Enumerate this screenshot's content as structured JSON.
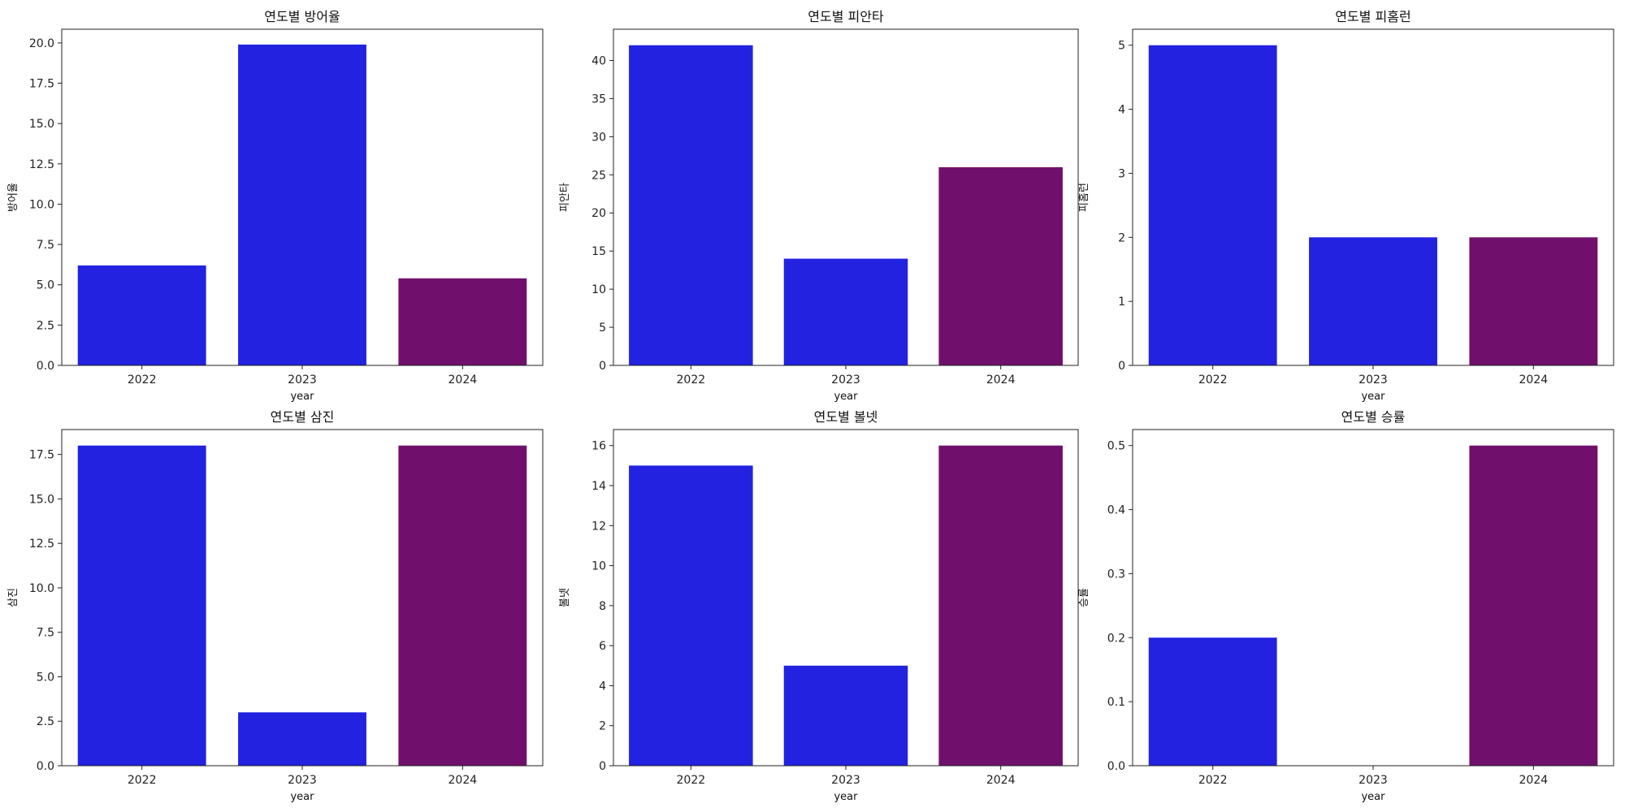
{
  "colors": {
    "blue": "#2222e0",
    "purple": "#70106c"
  },
  "chart_data": [
    {
      "type": "bar",
      "title": "연도별 방어율",
      "xlabel": "year",
      "ylabel": "방어율",
      "categories": [
        "2022",
        "2023",
        "2024"
      ],
      "values": [
        6.2,
        19.9,
        5.4
      ],
      "bar_colors": [
        "#2222e0",
        "#2222e0",
        "#70106c"
      ],
      "ylim": [
        0,
        20.85
      ],
      "yticks": [
        0.0,
        2.5,
        5.0,
        7.5,
        10.0,
        12.5,
        15.0,
        17.5,
        20.0
      ],
      "ytick_labels": [
        "0.0",
        "2.5",
        "5.0",
        "7.5",
        "10.0",
        "12.5",
        "15.0",
        "17.5",
        "20.0"
      ]
    },
    {
      "type": "bar",
      "title": "연도별 피안타",
      "xlabel": "year",
      "ylabel": "피안타",
      "categories": [
        "2022",
        "2023",
        "2024"
      ],
      "values": [
        42,
        14,
        26
      ],
      "bar_colors": [
        "#2222e0",
        "#2222e0",
        "#70106c"
      ],
      "ylim": [
        0,
        44.1
      ],
      "yticks": [
        0,
        5,
        10,
        15,
        20,
        25,
        30,
        35,
        40
      ],
      "ytick_labels": [
        "0",
        "5",
        "10",
        "15",
        "20",
        "25",
        "30",
        "35",
        "40"
      ]
    },
    {
      "type": "bar",
      "title": "연도별 피홈런",
      "xlabel": "year",
      "ylabel": "피홈런",
      "categories": [
        "2022",
        "2023",
        "2024"
      ],
      "values": [
        5,
        2,
        2
      ],
      "bar_colors": [
        "#2222e0",
        "#2222e0",
        "#70106c"
      ],
      "ylim": [
        0,
        5.25
      ],
      "yticks": [
        0,
        1,
        2,
        3,
        4,
        5
      ],
      "ytick_labels": [
        "0",
        "1",
        "2",
        "3",
        "4",
        "5"
      ]
    },
    {
      "type": "bar",
      "title": "연도별 삼진",
      "xlabel": "year",
      "ylabel": "삼진",
      "categories": [
        "2022",
        "2023",
        "2024"
      ],
      "values": [
        18,
        3,
        18
      ],
      "bar_colors": [
        "#2222e0",
        "#2222e0",
        "#70106c"
      ],
      "ylim": [
        0,
        18.9
      ],
      "yticks": [
        0.0,
        2.5,
        5.0,
        7.5,
        10.0,
        12.5,
        15.0,
        17.5
      ],
      "ytick_labels": [
        "0.0",
        "2.5",
        "5.0",
        "7.5",
        "10.0",
        "12.5",
        "15.0",
        "17.5"
      ]
    },
    {
      "type": "bar",
      "title": "연도별 볼넷",
      "xlabel": "year",
      "ylabel": "볼넷",
      "categories": [
        "2022",
        "2023",
        "2024"
      ],
      "values": [
        15,
        5,
        16
      ],
      "bar_colors": [
        "#2222e0",
        "#2222e0",
        "#70106c"
      ],
      "ylim": [
        0,
        16.8
      ],
      "yticks": [
        0,
        2,
        4,
        6,
        8,
        10,
        12,
        14,
        16
      ],
      "ytick_labels": [
        "0",
        "2",
        "4",
        "6",
        "8",
        "10",
        "12",
        "14",
        "16"
      ]
    },
    {
      "type": "bar",
      "title": "연도별 승률",
      "xlabel": "year",
      "ylabel": "승률",
      "categories": [
        "2022",
        "2023",
        "2024"
      ],
      "values": [
        0.2,
        0.0,
        0.5
      ],
      "bar_colors": [
        "#2222e0",
        "#2222e0",
        "#70106c"
      ],
      "ylim": [
        0,
        0.525
      ],
      "yticks": [
        0.0,
        0.1,
        0.2,
        0.3,
        0.4,
        0.5
      ],
      "ytick_labels": [
        "0.0",
        "0.1",
        "0.2",
        "0.3",
        "0.4",
        "0.5"
      ]
    }
  ]
}
